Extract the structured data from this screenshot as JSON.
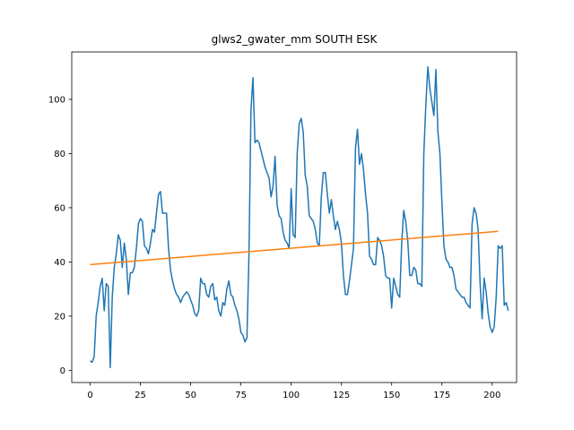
{
  "chart_data": {
    "type": "line",
    "title": "glws2_gwater_mm SOUTH ESK",
    "xlabel": "",
    "ylabel": "",
    "xlim": [
      -9.15,
      212.15
    ],
    "ylim": [
      -4.5,
      117.5
    ],
    "x_ticks": [
      0,
      25,
      50,
      75,
      100,
      125,
      150,
      175,
      200
    ],
    "y_ticks": [
      0,
      20,
      40,
      60,
      80,
      100
    ],
    "grid": false,
    "legend": "none",
    "series": [
      {
        "color": "#1f77b4",
        "values": [
          3.5,
          3,
          5,
          20,
          25,
          31,
          34,
          22,
          32,
          31,
          1,
          27,
          38,
          43,
          50,
          48,
          38,
          47,
          41,
          28,
          36,
          36,
          38,
          45,
          54,
          56,
          55,
          46,
          45,
          43,
          47,
          52,
          51,
          58,
          65,
          66,
          58,
          58,
          58,
          45,
          37,
          33,
          30,
          28,
          27,
          25,
          27,
          28,
          29,
          28,
          26,
          24,
          21,
          20,
          22,
          34,
          32,
          32,
          28,
          27,
          31,
          32,
          26,
          27,
          22,
          20,
          25,
          24,
          30,
          33,
          28,
          27,
          24,
          22,
          19,
          14,
          13,
          10.5,
          12,
          42,
          96,
          108,
          84,
          85,
          84,
          81,
          78,
          75,
          73,
          71,
          64,
          68,
          79,
          61,
          57,
          56,
          51,
          48,
          47,
          45,
          67,
          50,
          49,
          80,
          91,
          93,
          88,
          72,
          68,
          57,
          56,
          55,
          52,
          47,
          46,
          64,
          73,
          73,
          65,
          58,
          63,
          57,
          52,
          55,
          52,
          47,
          35,
          28,
          28,
          33,
          39,
          45,
          82,
          89,
          76,
          80,
          74,
          65,
          58,
          42,
          41,
          39,
          39,
          49,
          48,
          46,
          42,
          35,
          34,
          34,
          23,
          34,
          31,
          28,
          27,
          47,
          59,
          55,
          48,
          35,
          35,
          38,
          37,
          32,
          32,
          31,
          80,
          98,
          112,
          104,
          99,
          94,
          111,
          88,
          80,
          62,
          46,
          41,
          40,
          38,
          38,
          35,
          30,
          29,
          28,
          27,
          27,
          25,
          24,
          23,
          54,
          60,
          58,
          52,
          32,
          19,
          34,
          29,
          21,
          16,
          14,
          16,
          27,
          46,
          45,
          46,
          24,
          25,
          22
        ],
        "x_start": 0,
        "x_step": 1
      },
      {
        "color": "#ff7f0e",
        "x": [
          0,
          203
        ],
        "values": [
          39,
          51.3
        ]
      }
    ]
  }
}
